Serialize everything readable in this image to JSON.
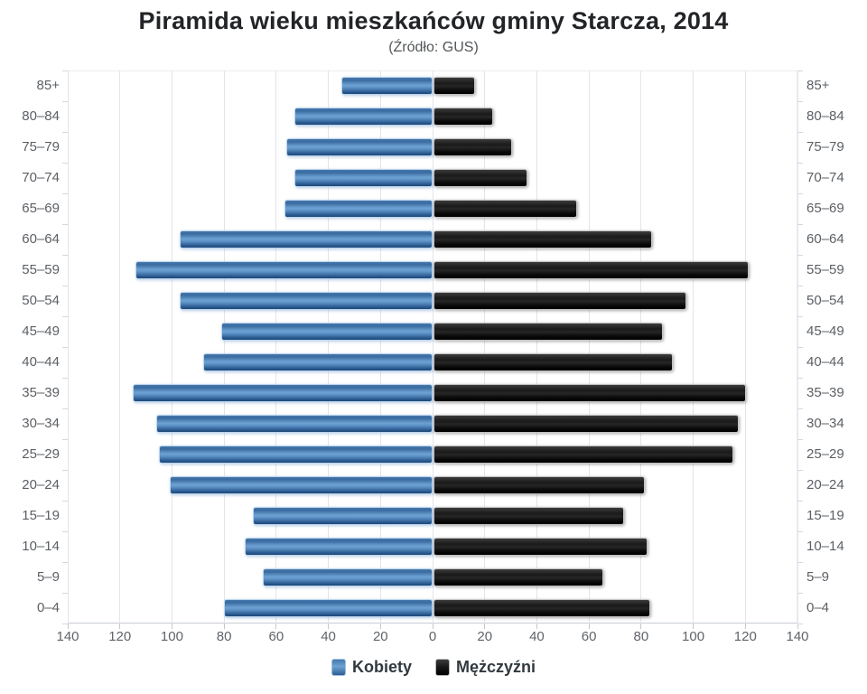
{
  "chart_data": {
    "type": "bar",
    "variant": "population-pyramid",
    "title": "Piramida wieku mieszkańców gminy Starcza, 2014",
    "subtitle": "(Źródło: GUS)",
    "categories": [
      "85+",
      "80–84",
      "75–79",
      "70–74",
      "65–69",
      "60–64",
      "55–59",
      "50–54",
      "45–49",
      "40–44",
      "35–39",
      "30–34",
      "25–29",
      "20–24",
      "15–19",
      "10–14",
      "5–9",
      "0–4"
    ],
    "series": [
      {
        "name": "Kobiety",
        "side": "left",
        "color": "#4572A7",
        "values": [
          35,
          53,
          56,
          53,
          57,
          97,
          114,
          97,
          81,
          88,
          115,
          106,
          105,
          101,
          69,
          72,
          65,
          80
        ]
      },
      {
        "name": "Mężczyźni",
        "side": "right",
        "color": "#111111",
        "values": [
          16,
          23,
          30,
          36,
          55,
          84,
          121,
          97,
          88,
          92,
          120,
          117,
          115,
          81,
          73,
          82,
          65,
          83
        ]
      }
    ],
    "x_axis": {
      "max": 140,
      "tick_interval": 20,
      "tick_labels": [
        "140",
        "120",
        "100",
        "80",
        "60",
        "40",
        "20",
        "0",
        "20",
        "40",
        "60",
        "80",
        "100",
        "120",
        "140"
      ]
    },
    "y_axis": {
      "categories_shown_on": "both-sides"
    },
    "grid": true,
    "legend_position": "bottom"
  },
  "colors": {
    "kobiety_accent": "#4572A7",
    "mezczyzni_accent": "#111111",
    "gridline": "#e4e4ea",
    "axis_label": "#606468"
  }
}
